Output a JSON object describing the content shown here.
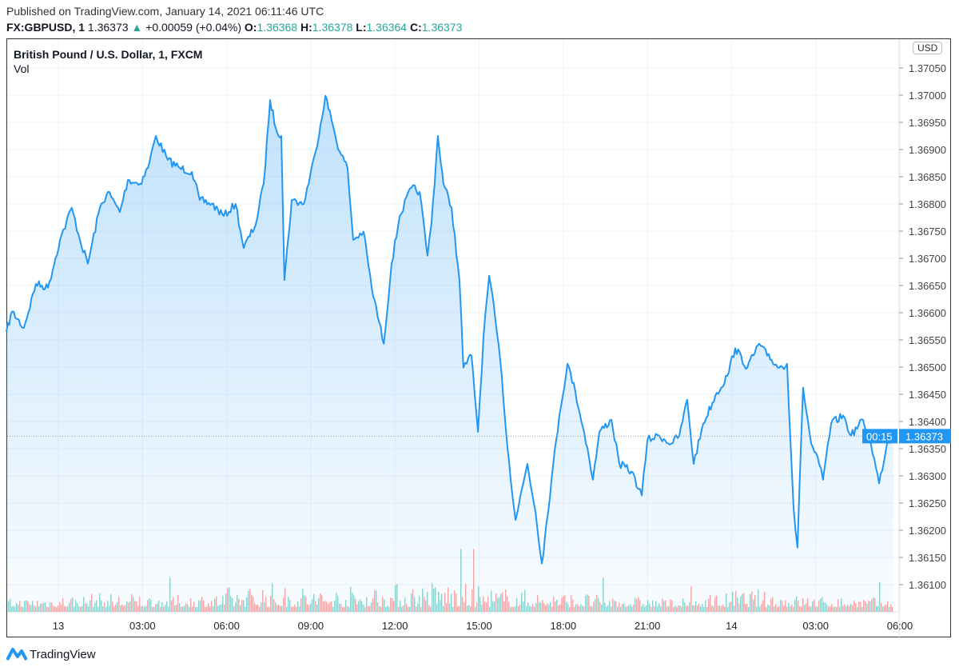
{
  "header": {
    "published": "Published on TradingView.com, January 14, 2021 06:11:46 UTC",
    "symbol": "FX:GBPUSD, 1",
    "last": "1.36373",
    "change": "+0.00059 (+0.04%)",
    "o_label": "O:",
    "o": "1.36368",
    "h_label": "H:",
    "h": "1.36378",
    "l_label": "L:",
    "l": "1.36364",
    "c_label": "C:",
    "c": "1.36373"
  },
  "pane": {
    "title": "British Pound / U.S. Dollar, 1, FXCM",
    "volume_label": "Vol",
    "currency": "USD"
  },
  "footer": {
    "brand": "TradingView"
  },
  "colors": {
    "line": "#2196f3",
    "up": "#26a69a",
    "down": "#ef5350",
    "grid": "#f0f3fa"
  },
  "chart_data": {
    "type": "area",
    "title": "British Pound / U.S. Dollar, 1, FXCM",
    "x_unit": "hours since Jan 13 00:00 UTC",
    "x_ticks": [
      {
        "h": 0,
        "label": "13"
      },
      {
        "h": 3,
        "label": "03:00"
      },
      {
        "h": 6,
        "label": "06:00"
      },
      {
        "h": 9,
        "label": "09:00"
      },
      {
        "h": 12,
        "label": "12:00"
      },
      {
        "h": 15,
        "label": "15:00"
      },
      {
        "h": 18,
        "label": "18:00"
      },
      {
        "h": 21,
        "label": "21:00"
      },
      {
        "h": 24,
        "label": "14"
      },
      {
        "h": 27,
        "label": "03:00"
      },
      {
        "h": 30,
        "label": "06:00"
      }
    ],
    "y_ticks": [
      "1.37050",
      "1.37000",
      "1.36950",
      "1.36900",
      "1.36850",
      "1.36800",
      "1.36750",
      "1.36700",
      "1.36650",
      "1.36600",
      "1.36550",
      "1.36500",
      "1.36450",
      "1.36400",
      "1.36350",
      "1.36300",
      "1.36250",
      "1.36200",
      "1.36150",
      "1.36100"
    ],
    "ylim": [
      1.3604,
      1.37145
    ],
    "last_price": "1.36373",
    "countdown": "00:15",
    "series": [
      [
        -1.85,
        1.36565
      ],
      [
        -1.65,
        1.36602
      ],
      [
        -1.23,
        1.36572
      ],
      [
        -0.8,
        1.36653
      ],
      [
        -0.37,
        1.36646
      ],
      [
        0.06,
        1.36734
      ],
      [
        0.48,
        1.36793
      ],
      [
        0.77,
        1.36734
      ],
      [
        1.05,
        1.3669
      ],
      [
        1.48,
        1.36793
      ],
      [
        1.77,
        1.36822
      ],
      [
        2.19,
        1.36785
      ],
      [
        2.48,
        1.36844
      ],
      [
        2.91,
        1.36837
      ],
      [
        3.19,
        1.36866
      ],
      [
        3.48,
        1.36925
      ],
      [
        3.9,
        1.36881
      ],
      [
        4.33,
        1.36866
      ],
      [
        4.76,
        1.36859
      ],
      [
        5.04,
        1.36807
      ],
      [
        5.47,
        1.368
      ],
      [
        5.9,
        1.36778
      ],
      [
        6.32,
        1.368
      ],
      [
        6.61,
        1.36719
      ],
      [
        7.04,
        1.36763
      ],
      [
        7.32,
        1.36837
      ],
      [
        7.55,
        1.36991
      ],
      [
        7.75,
        1.3694
      ],
      [
        7.95,
        1.36925
      ],
      [
        8.06,
        1.3666
      ],
      [
        8.32,
        1.36807
      ],
      [
        8.75,
        1.368
      ],
      [
        9.17,
        1.36896
      ],
      [
        9.52,
        1.36999
      ],
      [
        9.74,
        1.36954
      ],
      [
        10.03,
        1.36896
      ],
      [
        10.31,
        1.36866
      ],
      [
        10.51,
        1.36734
      ],
      [
        10.88,
        1.36749
      ],
      [
        11.17,
        1.36646
      ],
      [
        11.6,
        1.36543
      ],
      [
        11.88,
        1.3669
      ],
      [
        12.17,
        1.36778
      ],
      [
        12.59,
        1.3683
      ],
      [
        12.88,
        1.36822
      ],
      [
        13.16,
        1.36705
      ],
      [
        13.3,
        1.36763
      ],
      [
        13.53,
        1.36925
      ],
      [
        13.73,
        1.36837
      ],
      [
        14.02,
        1.36793
      ],
      [
        14.3,
        1.3666
      ],
      [
        14.44,
        1.36499
      ],
      [
        14.73,
        1.36521
      ],
      [
        14.96,
        1.36381
      ],
      [
        15.16,
        1.36558
      ],
      [
        15.36,
        1.36668
      ],
      [
        15.58,
        1.36587
      ],
      [
        15.81,
        1.36484
      ],
      [
        16.01,
        1.36352
      ],
      [
        16.3,
        1.36219
      ],
      [
        16.72,
        1.36322
      ],
      [
        17.01,
        1.36234
      ],
      [
        17.24,
        1.36139
      ],
      [
        17.58,
        1.36293
      ],
      [
        17.86,
        1.36411
      ],
      [
        18.15,
        1.36506
      ],
      [
        18.43,
        1.36455
      ],
      [
        18.86,
        1.36352
      ],
      [
        19.06,
        1.36293
      ],
      [
        19.29,
        1.36381
      ],
      [
        19.72,
        1.36403
      ],
      [
        20.0,
        1.36322
      ],
      [
        20.43,
        1.36308
      ],
      [
        20.8,
        1.36264
      ],
      [
        21.0,
        1.36366
      ],
      [
        21.42,
        1.36374
      ],
      [
        21.85,
        1.36359
      ],
      [
        22.14,
        1.36374
      ],
      [
        22.42,
        1.3644
      ],
      [
        22.65,
        1.36322
      ],
      [
        22.99,
        1.36396
      ],
      [
        23.42,
        1.36447
      ],
      [
        23.85,
        1.36484
      ],
      [
        24.13,
        1.36535
      ],
      [
        24.56,
        1.36499
      ],
      [
        24.99,
        1.36543
      ],
      [
        25.27,
        1.36521
      ],
      [
        25.7,
        1.36499
      ],
      [
        25.98,
        1.36506
      ],
      [
        26.21,
        1.36241
      ],
      [
        26.35,
        1.36168
      ],
      [
        26.55,
        1.36462
      ],
      [
        26.84,
        1.36359
      ],
      [
        27.12,
        1.36322
      ],
      [
        27.26,
        1.36293
      ],
      [
        27.55,
        1.36396
      ],
      [
        27.98,
        1.36411
      ],
      [
        28.26,
        1.36374
      ],
      [
        28.69,
        1.36403
      ],
      [
        28.97,
        1.36359
      ],
      [
        29.26,
        1.36286
      ],
      [
        29.54,
        1.36359
      ],
      [
        29.77,
        1.36373
      ]
    ],
    "volume_relative_by_hour": [
      0.25,
      0.3,
      0.35,
      0.4,
      0.4,
      0.35,
      0.35,
      0.4,
      0.6,
      0.7,
      0.6,
      0.55,
      0.6,
      0.65,
      0.7,
      0.75,
      0.7,
      0.55,
      0.5,
      0.45,
      0.4,
      0.35,
      0.3,
      0.25,
      0.25,
      0.4,
      0.5,
      0.45,
      0.35,
      0.3,
      0.3,
      0.3
    ]
  }
}
